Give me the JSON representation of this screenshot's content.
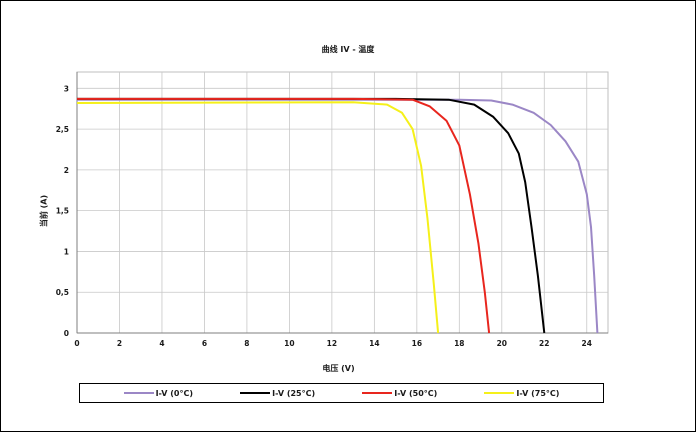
{
  "chart_data": {
    "type": "line",
    "title": "曲线 IV - 温度",
    "xlabel": "电压 (V)",
    "ylabel": "当前 (A)",
    "xlim": [
      0,
      25
    ],
    "ylim": [
      0,
      3.2
    ],
    "xticks": [
      0,
      2,
      4,
      6,
      8,
      10,
      12,
      14,
      16,
      18,
      20,
      22,
      24
    ],
    "xtick_labels": [
      "0",
      "2",
      "4",
      "6",
      "8",
      "10",
      "12",
      "14",
      "16",
      "18",
      "20",
      "22",
      "24"
    ],
    "yticks": [
      0,
      0.5,
      1,
      1.5,
      2,
      2.5,
      3
    ],
    "ytick_labels": [
      "0",
      "0,5",
      "1",
      "1,5",
      "2",
      "2,5",
      "3"
    ],
    "grid": true,
    "legend_position": "bottom",
    "series": [
      {
        "name": "I-V (0°C)",
        "color": "#9b87c6",
        "points": [
          [
            0,
            2.86
          ],
          [
            15,
            2.86
          ],
          [
            18,
            2.86
          ],
          [
            19.5,
            2.85
          ],
          [
            20.5,
            2.8
          ],
          [
            21.5,
            2.7
          ],
          [
            22.3,
            2.55
          ],
          [
            23,
            2.35
          ],
          [
            23.6,
            2.1
          ],
          [
            24,
            1.7
          ],
          [
            24.2,
            1.3
          ],
          [
            24.35,
            0.7
          ],
          [
            24.5,
            0
          ]
        ]
      },
      {
        "name": "I-V (25°C)",
        "color": "#000000",
        "points": [
          [
            0,
            2.87
          ],
          [
            15,
            2.87
          ],
          [
            17.5,
            2.86
          ],
          [
            18.7,
            2.8
          ],
          [
            19.6,
            2.65
          ],
          [
            20.3,
            2.45
          ],
          [
            20.8,
            2.2
          ],
          [
            21.1,
            1.85
          ],
          [
            21.4,
            1.3
          ],
          [
            21.7,
            0.7
          ],
          [
            22,
            0
          ]
        ]
      },
      {
        "name": "I-V (50°C)",
        "color": "#e8261e",
        "points": [
          [
            0,
            2.87
          ],
          [
            13,
            2.87
          ],
          [
            15.8,
            2.86
          ],
          [
            16.6,
            2.78
          ],
          [
            17.4,
            2.6
          ],
          [
            18,
            2.3
          ],
          [
            18.5,
            1.7
          ],
          [
            18.9,
            1.1
          ],
          [
            19.2,
            0.5
          ],
          [
            19.4,
            0
          ]
        ]
      },
      {
        "name": "I-V (75°C)",
        "color": "#f5f01a",
        "points": [
          [
            0,
            2.82
          ],
          [
            13,
            2.83
          ],
          [
            14.6,
            2.8
          ],
          [
            15.3,
            2.7
          ],
          [
            15.8,
            2.5
          ],
          [
            16.2,
            2.05
          ],
          [
            16.5,
            1.4
          ],
          [
            16.8,
            0.6
          ],
          [
            17,
            0
          ]
        ]
      }
    ]
  }
}
